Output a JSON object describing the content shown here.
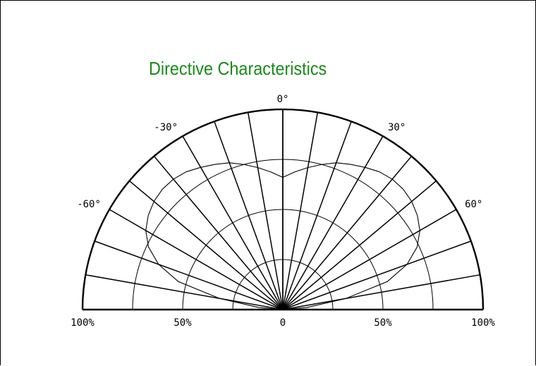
{
  "chart_data": {
    "type": "polar",
    "title": "Directive Characteristics",
    "title_color": "#1a8a1a",
    "line_color": "#000000",
    "angle_range_deg": [
      -90,
      90
    ],
    "spoke_step_deg": 10,
    "ring_levels_percent": [
      25,
      50,
      75,
      100
    ],
    "angle_labels": [
      {
        "angle": 0,
        "text": "0°"
      },
      {
        "angle": -30,
        "text": "-30°"
      },
      {
        "angle": 30,
        "text": "30°"
      },
      {
        "angle": -60,
        "text": "-60°"
      },
      {
        "angle": 60,
        "text": "60°"
      }
    ],
    "radius_labels": [
      {
        "value": -100,
        "text": "100%"
      },
      {
        "value": -50,
        "text": "50%"
      },
      {
        "value": 0,
        "text": "0"
      },
      {
        "value": 50,
        "text": "50%"
      },
      {
        "value": 100,
        "text": "100%"
      }
    ],
    "series": [
      {
        "angles_deg": [
          -90,
          -85,
          -80,
          -75,
          -70,
          -65,
          -60,
          -55,
          -50,
          -45,
          -40,
          -35,
          -30,
          -25,
          -20,
          -15,
          -10,
          -5,
          0,
          5,
          10,
          15,
          20,
          25,
          30,
          35,
          40,
          45,
          50,
          55,
          60,
          65,
          70,
          75,
          80,
          85,
          90
        ],
        "relative_intensity_percent": [
          0,
          12,
          32,
          54,
          66,
          74,
          79,
          82,
          84,
          85,
          85,
          84,
          82,
          80,
          78,
          75,
          72,
          69,
          66,
          69,
          72,
          75,
          78,
          80,
          82,
          84,
          85,
          85,
          84,
          82,
          79,
          74,
          66,
          54,
          32,
          12,
          0
        ]
      }
    ]
  }
}
